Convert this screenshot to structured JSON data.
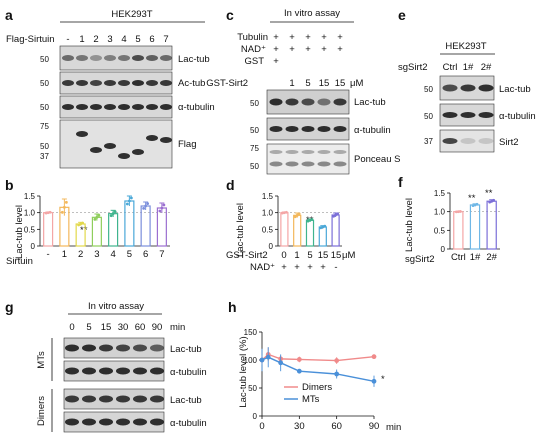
{
  "panels": {
    "a": {
      "letter": "a",
      "header": "HEK293T",
      "lane_label": "Flag-Sirtuin",
      "lanes": [
        "-",
        "1",
        "2",
        "3",
        "4",
        "5",
        "6",
        "7"
      ],
      "rows": [
        "Lac-tub",
        "Ac-tub",
        "α-tubulin",
        "Flag"
      ],
      "markers": [
        "50",
        "50",
        "50",
        "75",
        "50",
        "37"
      ]
    },
    "b": {
      "letter": "b",
      "ylabel": "Lac-tub level",
      "xlabel": "Sirtuin",
      "star": "**"
    },
    "c": {
      "letter": "c",
      "header": "In vitro assay",
      "conditions": [
        {
          "label": "Tubulin",
          "signs": [
            "+",
            "+",
            "+",
            "+",
            "+"
          ]
        },
        {
          "label": "NAD⁺",
          "signs": [
            "+",
            "+",
            "+",
            "+",
            "+"
          ]
        },
        {
          "label": "GST",
          "signs": [
            "+",
            "",
            "",
            "",
            ""
          ]
        },
        {
          "label": "GST-Sirt2",
          "signs": [
            "",
            "1",
            "5",
            "15",
            "15"
          ],
          "unit": "μM"
        }
      ],
      "rows": [
        "Lac-tub",
        "α-tubulin",
        "Ponceau S"
      ],
      "markers": [
        "50",
        "50",
        "75",
        "50"
      ]
    },
    "d": {
      "letter": "d",
      "ylabel": "Lac-tub level",
      "row1_label": "GST-Sirt2",
      "row1": [
        "0",
        "1",
        "5",
        "15",
        "15"
      ],
      "row1_unit": "μM",
      "row2_label": "NAD⁺",
      "row2": [
        "+",
        "+",
        "+",
        "+",
        "-"
      ],
      "stars": [
        "**",
        "*"
      ]
    },
    "e": {
      "letter": "e",
      "header": "HEK293T",
      "lane_label": "sgSirt2",
      "lanes": [
        "Ctrl",
        "1#",
        "2#"
      ],
      "rows": [
        "Lac-tub",
        "α-tubulin",
        "Sirt2"
      ],
      "markers": [
        "50",
        "50",
        "37"
      ]
    },
    "f": {
      "letter": "f",
      "ylabel": "Lac-tub level",
      "xlabel": "sgSirt2",
      "categories": [
        "Ctrl",
        "1#",
        "2#"
      ],
      "stars": [
        "**",
        "**"
      ]
    },
    "g": {
      "letter": "g",
      "header": "In vitro assay",
      "times": [
        "0",
        "5",
        "15",
        "30",
        "60",
        "90"
      ],
      "time_unit": "min",
      "groups": [
        "MTs",
        "Dimers"
      ],
      "rows": [
        "Lac-tub",
        "α-tubulin",
        "Lac-tub",
        "α-tubulin"
      ]
    },
    "h": {
      "letter": "h",
      "ylabel": "Lac-tub level (%)",
      "xunit": "min",
      "legend": [
        "Dimers",
        "MTs"
      ],
      "star": "*"
    }
  },
  "chart_data": [
    {
      "id": "b",
      "type": "bar",
      "categories": [
        "-",
        "1",
        "2",
        "3",
        "4",
        "5",
        "6",
        "7"
      ],
      "values": [
        1.0,
        1.16,
        0.66,
        0.86,
        0.97,
        1.35,
        1.2,
        1.14
      ],
      "errors": [
        0.02,
        0.25,
        0.05,
        0.1,
        0.1,
        0.15,
        0.12,
        0.15
      ],
      "colors": [
        "#f4a6a6",
        "#f3b85c",
        "#e2d84b",
        "#8fce5c",
        "#3fb48e",
        "#4aa8d8",
        "#7b8fdc",
        "#9b6fd0"
      ],
      "ylim": [
        0,
        1.5
      ],
      "yticks": [
        "0",
        "0.5",
        "1.0",
        "1.5"
      ]
    },
    {
      "id": "d",
      "type": "bar",
      "categories": [
        "0",
        "1",
        "5",
        "15",
        "15"
      ],
      "values": [
        1.0,
        0.92,
        0.77,
        0.57,
        0.93
      ],
      "errors": [
        0.02,
        0.07,
        0.04,
        0.04,
        0.06
      ],
      "colors": [
        "#f4a6a6",
        "#f3b85c",
        "#3fb48e",
        "#4aa8d8",
        "#7b6fd8"
      ],
      "ylim": [
        0,
        1.5
      ],
      "yticks": [
        "0",
        "0.5",
        "1.0",
        "1.5"
      ]
    },
    {
      "id": "f",
      "type": "bar",
      "categories": [
        "Ctrl",
        "1#",
        "2#"
      ],
      "values": [
        1.0,
        1.18,
        1.28
      ],
      "errors": [
        0.01,
        0.03,
        0.04
      ],
      "colors": [
        "#f4a6a6",
        "#6fb7e6",
        "#7b6fd8"
      ],
      "ylim": [
        0,
        1.5
      ],
      "yticks": [
        "0",
        "0.5",
        "1.0",
        "1.5"
      ]
    },
    {
      "id": "h",
      "type": "line",
      "x": [
        0,
        5,
        15,
        30,
        60,
        90
      ],
      "series": [
        {
          "name": "Dimers",
          "color": "#f08a8a",
          "values": [
            100,
            110,
            102,
            101,
            99,
            106
          ],
          "errors": [
            8,
            12,
            6,
            5,
            6,
            2
          ]
        },
        {
          "name": "MTs",
          "color": "#4a90d9",
          "values": [
            100,
            105,
            95,
            80,
            75,
            62
          ],
          "errors": [
            20,
            18,
            15,
            4,
            8,
            10
          ]
        }
      ],
      "xticks": [
        "0",
        "30",
        "60",
        "90"
      ],
      "xlim": [
        0,
        90
      ],
      "yticks": [
        "0",
        "50",
        "100",
        "150"
      ],
      "ylim": [
        0,
        150
      ]
    }
  ]
}
